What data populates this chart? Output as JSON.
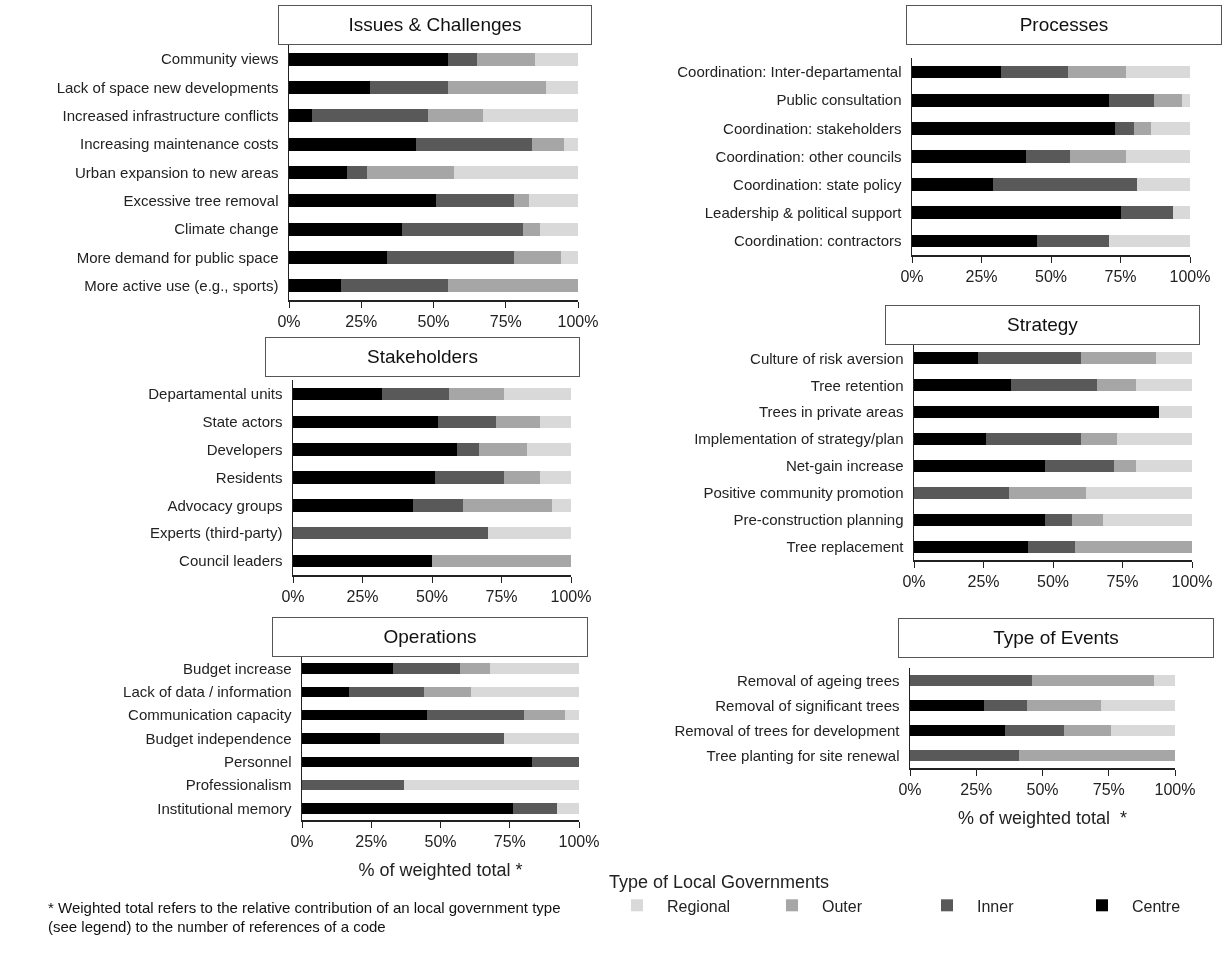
{
  "chart_data": [
    {
      "type": "bar",
      "title": "Issues & Challenges",
      "orientation": "horizontal",
      "stacked": true,
      "categories": [
        "Community views",
        "Lack of space new developments",
        "Increased infrastructure conflicts",
        "Increasing maintenance costs",
        "Urban expansion to new areas",
        "Excessive tree removal",
        "Climate change",
        "More demand for public space",
        "More active use (e.g., sports)"
      ],
      "xlim": [
        0,
        100
      ],
      "xticks": [
        {
          "value": 0,
          "label": "0%"
        },
        {
          "value": 25,
          "label": "25%"
        },
        {
          "value": 50,
          "label": "50%"
        },
        {
          "value": 75,
          "label": "75%"
        },
        {
          "value": 100,
          "label": "100%"
        }
      ],
      "grid": false,
      "series": [
        {
          "color": "#000000",
          "values": [
            55,
            28,
            8,
            44,
            20,
            51,
            39,
            34,
            18
          ]
        },
        {
          "color": "#595959",
          "values": [
            10,
            27,
            40,
            40,
            7,
            27,
            42,
            44,
            37
          ]
        },
        {
          "color": "#a6a6a6",
          "values": [
            20,
            34,
            19,
            11,
            30,
            5,
            6,
            16,
            45
          ]
        },
        {
          "color": "#d9d9d9",
          "values": [
            15,
            11,
            33,
            5,
            43,
            17,
            13,
            6,
            0
          ]
        }
      ]
    },
    {
      "type": "bar",
      "title": "Processes",
      "orientation": "horizontal",
      "stacked": true,
      "categories": [
        "Coordination: Inter-departamental",
        "Public consultation",
        "Coordination: stakeholders",
        "Coordination: other councils",
        "Coordination: state policy",
        "Leadership & political support",
        "Coordination: contractors"
      ],
      "xlim": [
        0,
        100
      ],
      "xticks": [
        {
          "value": 0,
          "label": "0%"
        },
        {
          "value": 25,
          "label": "25%"
        },
        {
          "value": 50,
          "label": "50%"
        },
        {
          "value": 75,
          "label": "75%"
        },
        {
          "value": 100,
          "label": "100%"
        }
      ],
      "grid": false,
      "series": [
        {
          "color": "#000000",
          "values": [
            32,
            71,
            73,
            41,
            29,
            75,
            45
          ]
        },
        {
          "color": "#595959",
          "values": [
            24,
            16,
            7,
            16,
            52,
            19,
            26
          ]
        },
        {
          "color": "#a6a6a6",
          "values": [
            21,
            10,
            6,
            20,
            0,
            0,
            0
          ]
        },
        {
          "color": "#d9d9d9",
          "values": [
            23,
            3,
            14,
            23,
            19,
            6,
            29
          ]
        }
      ]
    },
    {
      "type": "bar",
      "title": "Stakeholders",
      "orientation": "horizontal",
      "stacked": true,
      "categories": [
        "Departamental units",
        "State actors",
        "Developers",
        "Residents",
        "Advocacy groups",
        "Experts (third-party)",
        "Council leaders"
      ],
      "xlim": [
        0,
        100
      ],
      "xticks": [
        {
          "value": 0,
          "label": "0%"
        },
        {
          "value": 25,
          "label": "25%"
        },
        {
          "value": 50,
          "label": "50%"
        },
        {
          "value": 75,
          "label": "75%"
        },
        {
          "value": 100,
          "label": "100%"
        }
      ],
      "grid": false,
      "series": [
        {
          "color": "#000000",
          "values": [
            32,
            52,
            59,
            51,
            43,
            0,
            50
          ]
        },
        {
          "color": "#595959",
          "values": [
            24,
            21,
            8,
            25,
            18,
            70,
            0
          ]
        },
        {
          "color": "#a6a6a6",
          "values": [
            20,
            16,
            17,
            13,
            32,
            0,
            50
          ]
        },
        {
          "color": "#d9d9d9",
          "values": [
            24,
            11,
            16,
            11,
            7,
            30,
            0
          ]
        }
      ]
    },
    {
      "type": "bar",
      "title": "Strategy",
      "orientation": "horizontal",
      "stacked": true,
      "categories": [
        "Culture of risk aversion",
        "Tree retention",
        "Trees in private areas",
        "Implementation of strategy/plan",
        "Net-gain increase",
        "Positive community promotion",
        "Pre-construction planning",
        "Tree replacement"
      ],
      "xlim": [
        0,
        100
      ],
      "xticks": [
        {
          "value": 0,
          "label": "0%"
        },
        {
          "value": 25,
          "label": "25%"
        },
        {
          "value": 50,
          "label": "50%"
        },
        {
          "value": 75,
          "label": "75%"
        },
        {
          "value": 100,
          "label": "100%"
        }
      ],
      "grid": false,
      "series": [
        {
          "color": "#000000",
          "values": [
            23,
            35,
            88,
            26,
            47,
            0,
            47,
            41
          ]
        },
        {
          "color": "#595959",
          "values": [
            37,
            31,
            0,
            34,
            25,
            34,
            10,
            17
          ]
        },
        {
          "color": "#a6a6a6",
          "values": [
            27,
            14,
            0,
            13,
            8,
            28,
            11,
            42
          ]
        },
        {
          "color": "#d9d9d9",
          "values": [
            13,
            20,
            12,
            27,
            20,
            38,
            32,
            0
          ]
        }
      ]
    },
    {
      "type": "bar",
      "title": "Operations",
      "xlabel": "% of weighted total *",
      "orientation": "horizontal",
      "stacked": true,
      "categories": [
        "Budget increase",
        "Lack of data / information",
        "Communication capacity",
        "Budget independence",
        "Personnel",
        "Professionalism",
        "Institutional memory"
      ],
      "xlim": [
        0,
        100
      ],
      "xticks": [
        {
          "value": 0,
          "label": "0%"
        },
        {
          "value": 25,
          "label": "25%"
        },
        {
          "value": 50,
          "label": "50%"
        },
        {
          "value": 75,
          "label": "75%"
        },
        {
          "value": 100,
          "label": "100%"
        }
      ],
      "grid": false,
      "annotations": [
        "* Weighted total refers to the relative contribution of an local government type (see legend) to the number of references of a code"
      ],
      "series": [
        {
          "color": "#000000",
          "values": [
            33,
            17,
            45,
            28,
            83,
            0,
            76
          ]
        },
        {
          "color": "#595959",
          "values": [
            24,
            27,
            35,
            45,
            17,
            37,
            16
          ]
        },
        {
          "color": "#a6a6a6",
          "values": [
            11,
            17,
            15,
            0,
            0,
            0,
            0
          ]
        },
        {
          "color": "#d9d9d9",
          "values": [
            32,
            39,
            5,
            27,
            0,
            63,
            8
          ]
        }
      ]
    },
    {
      "type": "bar",
      "title": "Type of Events",
      "xlabel": "% of weighted total  *",
      "legend_title": "Type of Local Governments",
      "legend": "bottom",
      "orientation": "horizontal",
      "stacked": true,
      "categories": [
        "Removal of ageing trees",
        "Removal of significant trees",
        "Removal of trees for development",
        "Tree planting for site renewal"
      ],
      "xlim": [
        0,
        100
      ],
      "xticks": [
        {
          "value": 0,
          "label": "0%"
        },
        {
          "value": 25,
          "label": "25%"
        },
        {
          "value": 50,
          "label": "50%"
        },
        {
          "value": 75,
          "label": "75%"
        },
        {
          "value": 100,
          "label": "100%"
        }
      ],
      "grid": false,
      "series": [
        {
          "name": "Centre",
          "color": "#000000",
          "values": [
            0,
            28,
            36,
            0
          ]
        },
        {
          "name": "Inner",
          "color": "#595959",
          "values": [
            46,
            16,
            22,
            41
          ]
        },
        {
          "name": "Outer",
          "color": "#a6a6a6",
          "values": [
            46,
            28,
            18,
            59
          ]
        },
        {
          "name": "Regional",
          "color": "#d9d9d9",
          "values": [
            8,
            28,
            24,
            0
          ]
        }
      ]
    }
  ]
}
